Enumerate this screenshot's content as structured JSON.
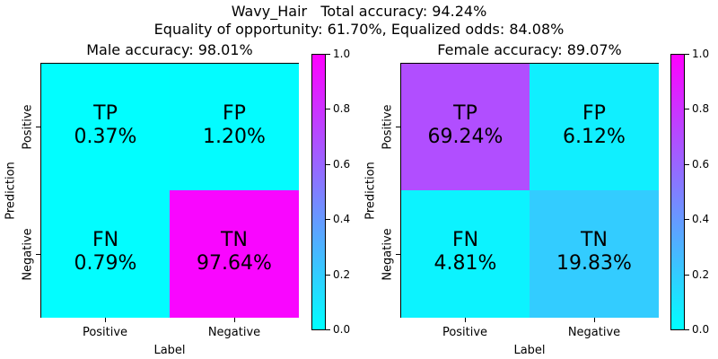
{
  "suptitle": {
    "line1": "Wavy_Hair   Total accuracy: 94.24%",
    "line2": "Equality of opportunity: 61.70%, Equalized odds: 84.08%"
  },
  "colors": {
    "low": "#00ffff",
    "high": "#ff00ff"
  },
  "chart_data": [
    {
      "type": "heatmap",
      "title": "Male accuracy: 98.01%",
      "xlabel": "Label",
      "ylabel": "Prediction",
      "x_categories": [
        "Positive",
        "Negative"
      ],
      "y_categories": [
        "Positive",
        "Negative"
      ],
      "cells": [
        {
          "row": 0,
          "col": 0,
          "name": "TP",
          "label": "0.37%",
          "value": 0.0037
        },
        {
          "row": 0,
          "col": 1,
          "name": "FP",
          "label": "1.20%",
          "value": 0.012
        },
        {
          "row": 1,
          "col": 0,
          "name": "FN",
          "label": "0.79%",
          "value": 0.0079
        },
        {
          "row": 1,
          "col": 1,
          "name": "TN",
          "label": "97.64%",
          "value": 0.9764
        }
      ],
      "colorbar": {
        "min": 0.0,
        "max": 1.0,
        "ticks": [
          "0.0",
          "0.2",
          "0.4",
          "0.6",
          "0.8",
          "1.0"
        ]
      }
    },
    {
      "type": "heatmap",
      "title": "Female accuracy: 89.07%",
      "xlabel": "Label",
      "ylabel": "Prediction",
      "x_categories": [
        "Positive",
        "Negative"
      ],
      "y_categories": [
        "Positive",
        "Negative"
      ],
      "cells": [
        {
          "row": 0,
          "col": 0,
          "name": "TP",
          "label": "69.24%",
          "value": 0.6924
        },
        {
          "row": 0,
          "col": 1,
          "name": "FP",
          "label": "6.12%",
          "value": 0.0612
        },
        {
          "row": 1,
          "col": 0,
          "name": "FN",
          "label": "4.81%",
          "value": 0.0481
        },
        {
          "row": 1,
          "col": 1,
          "name": "TN",
          "label": "19.83%",
          "value": 0.1983
        }
      ],
      "colorbar": {
        "min": 0.0,
        "max": 1.0,
        "ticks": [
          "0.0",
          "0.2",
          "0.4",
          "0.6",
          "0.8",
          "1.0"
        ]
      }
    }
  ]
}
